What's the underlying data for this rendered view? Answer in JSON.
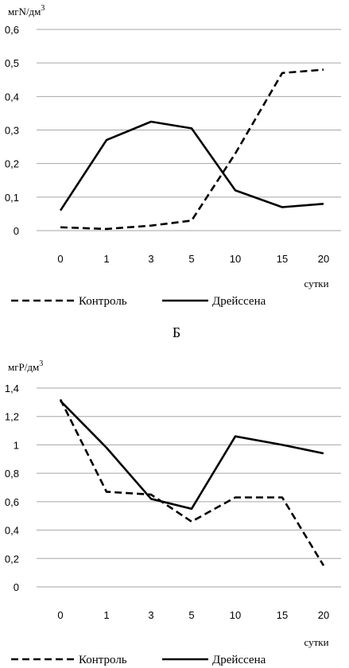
{
  "panel_label": "Б",
  "chart_data": [
    {
      "type": "line",
      "ylabel": "мгN/дм",
      "ylabel_sup": "3",
      "xlabel": "сутки",
      "categories": [
        "0",
        "1",
        "3",
        "5",
        "10",
        "15",
        "20"
      ],
      "ylim": [
        0,
        0.6
      ],
      "yticks": [
        "0",
        "0,1",
        "0,2",
        "0,3",
        "0,4",
        "0,5",
        "0,6"
      ],
      "grid": true,
      "legend_position": "bottom",
      "series": [
        {
          "name": "Контроль",
          "style": "dashed",
          "values": [
            0.01,
            0.005,
            0.015,
            0.03,
            0.23,
            0.47,
            0.48
          ]
        },
        {
          "name": "Дрейссена",
          "style": "solid",
          "values": [
            0.06,
            0.27,
            0.325,
            0.305,
            0.12,
            0.07,
            0.08
          ]
        }
      ]
    },
    {
      "type": "line",
      "ylabel": "мгР/дм",
      "ylabel_sup": "3",
      "xlabel": "сутки",
      "categories": [
        "0",
        "1",
        "3",
        "5",
        "10",
        "15",
        "20"
      ],
      "ylim": [
        0,
        1.4
      ],
      "yticks": [
        "0",
        "0,2",
        "0,4",
        "0,6",
        "0,8",
        "1",
        "1,2",
        "1,4"
      ],
      "grid": true,
      "legend_position": "bottom",
      "series": [
        {
          "name": "Контроль",
          "style": "dashed",
          "values": [
            1.32,
            0.67,
            0.65,
            0.46,
            0.63,
            0.63,
            0.15
          ]
        },
        {
          "name": "Дрейссена",
          "style": "solid",
          "values": [
            1.31,
            0.98,
            0.62,
            0.55,
            1.06,
            1.0,
            0.94
          ]
        }
      ]
    }
  ]
}
